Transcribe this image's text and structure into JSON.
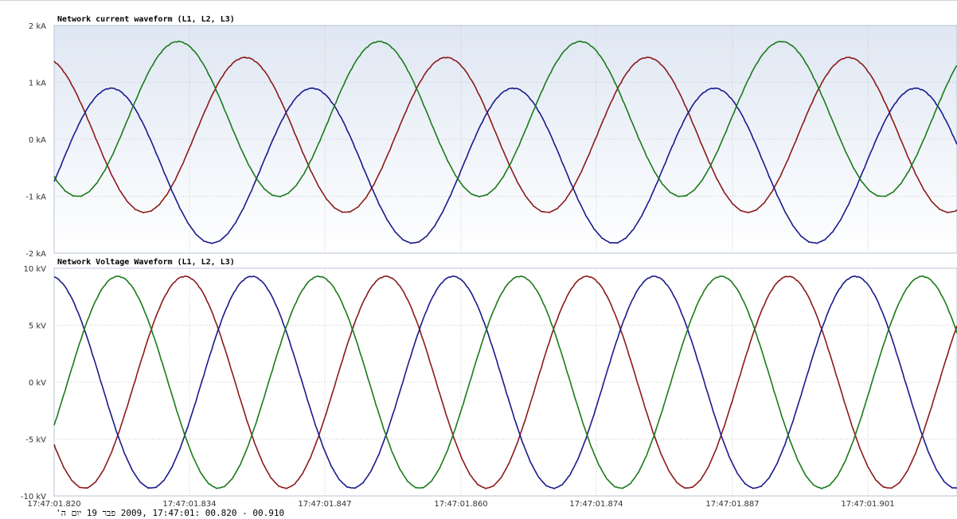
{
  "chart_data": [
    {
      "type": "line",
      "title": "Network current waveform (L1, L2, L3)",
      "ylabel": "",
      "xlabel": "",
      "unit": "kA",
      "ylim": [
        -2,
        2
      ],
      "yticks": [
        {
          "value": 2,
          "label": "2 kA"
        },
        {
          "value": 1,
          "label": "1 kA"
        },
        {
          "value": 0,
          "label": "0 kA"
        },
        {
          "value": -1,
          "label": "-1 kA"
        },
        {
          "value": -2,
          "label": "-2 kA"
        }
      ],
      "grid": true,
      "background": "gradient",
      "series": [
        {
          "color": "#8b1a1a",
          "amplitude": 1.36,
          "offset": 0.08,
          "phase_deg": 0
        },
        {
          "color": "#1a1a8b",
          "amplitude": 1.36,
          "offset": -0.46,
          "phase_deg": -120
        },
        {
          "color": "#1a7a1a",
          "amplitude": 1.36,
          "offset": 0.36,
          "phase_deg": 120
        }
      ],
      "period_ms": 20,
      "x_ms_range": [
        0,
        100
      ]
    },
    {
      "type": "line",
      "title": "Network Voltage Waveform (L1, L2, L3)",
      "ylabel": "",
      "xlabel": "",
      "unit": "kV",
      "ylim": [
        -10,
        10
      ],
      "yticks": [
        {
          "value": 10,
          "label": "10 kV"
        },
        {
          "value": 5,
          "label": "5 kV"
        },
        {
          "value": 0,
          "label": "0 kV"
        },
        {
          "value": -5,
          "label": "-5 kV"
        },
        {
          "value": -10,
          "label": "-10 kV"
        }
      ],
      "xticks": [
        "17:47:01.820",
        "17:47:01.834",
        "17:47:01.847",
        "17:47:01.860",
        "17:47:01.874",
        "17:47:01.887",
        "17:47:01.901"
      ],
      "grid": true,
      "series": [
        {
          "color": "#8b1a1a",
          "amplitude": 9.3,
          "offset": 0,
          "phase_deg": 0
        },
        {
          "color": "#1a1a8b",
          "amplitude": 9.3,
          "offset": 0,
          "phase_deg": -120
        },
        {
          "color": "#1a7a1a",
          "amplitude": 9.3,
          "offset": 0,
          "phase_deg": 120
        }
      ],
      "period_ms": 20,
      "x_ms_range": [
        0,
        100
      ]
    }
  ],
  "footer": "00.910 - 00.820 :17:47:01 ,2009 פבר 19 יום ה'"
}
